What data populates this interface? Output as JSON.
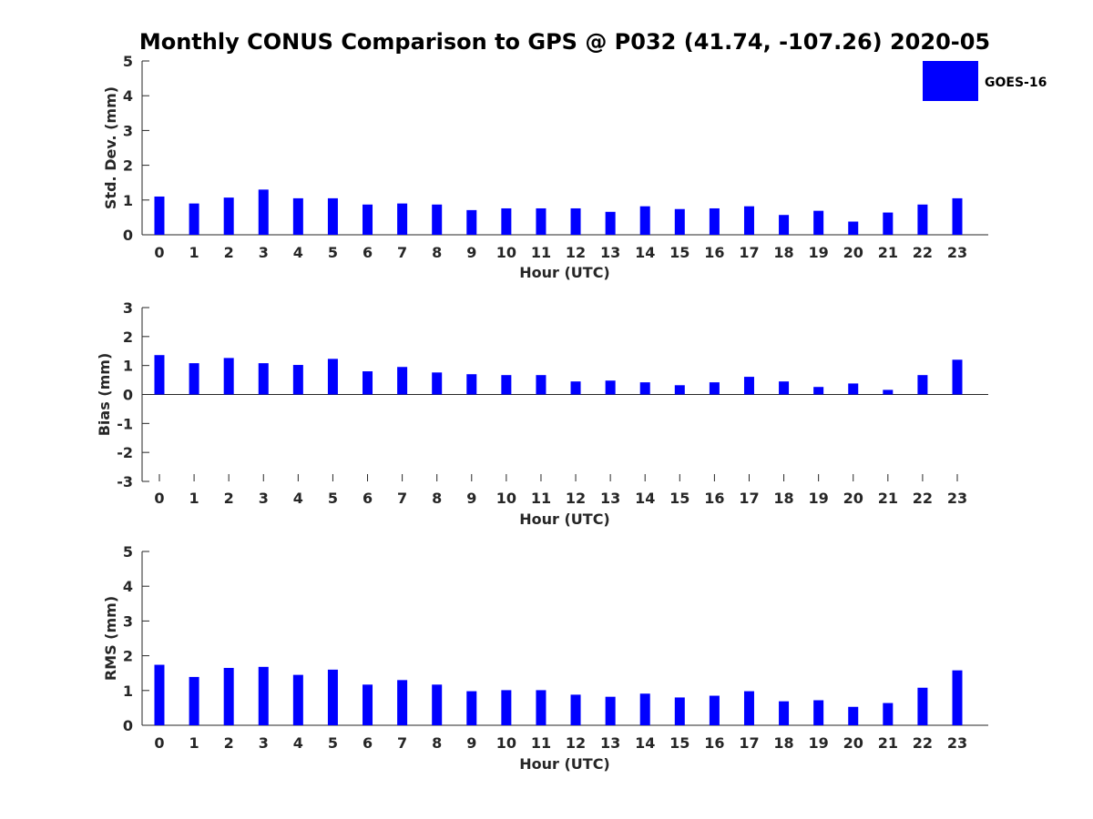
{
  "title": "Monthly CONUS Comparison to GPS @ P032 (41.74, -107.26) 2020-05",
  "legend": {
    "label": "GOES-16",
    "color": "#0000ff"
  },
  "chart_data": [
    {
      "type": "bar",
      "title": "",
      "xlabel": "Hour (UTC)",
      "ylabel": "Std. Dev. (mm)",
      "ylim": [
        0,
        5
      ],
      "yticks": [
        "0",
        "1",
        "2",
        "3",
        "4",
        "5"
      ],
      "categories": [
        "0",
        "1",
        "2",
        "3",
        "4",
        "5",
        "6",
        "7",
        "8",
        "9",
        "10",
        "11",
        "12",
        "13",
        "14",
        "15",
        "16",
        "17",
        "18",
        "19",
        "20",
        "21",
        "22",
        "23"
      ],
      "series": [
        {
          "name": "GOES-16",
          "values": [
            1.1,
            0.9,
            1.07,
            1.3,
            1.05,
            1.05,
            0.87,
            0.9,
            0.87,
            0.71,
            0.76,
            0.76,
            0.76,
            0.66,
            0.82,
            0.74,
            0.76,
            0.82,
            0.57,
            0.69,
            0.38,
            0.64,
            0.87,
            1.05
          ]
        }
      ]
    },
    {
      "type": "bar",
      "title": "",
      "xlabel": "Hour (UTC)",
      "ylabel": "Bias (mm)",
      "ylim": [
        -3,
        3
      ],
      "yticks": [
        "-3",
        "-2",
        "-1",
        "0",
        "1",
        "2",
        "3"
      ],
      "categories": [
        "0",
        "1",
        "2",
        "3",
        "4",
        "5",
        "6",
        "7",
        "8",
        "9",
        "10",
        "11",
        "12",
        "13",
        "14",
        "15",
        "16",
        "17",
        "18",
        "19",
        "20",
        "21",
        "22",
        "23"
      ],
      "series": [
        {
          "name": "GOES-16",
          "values": [
            1.36,
            1.08,
            1.26,
            1.08,
            1.02,
            1.23,
            0.8,
            0.95,
            0.76,
            0.7,
            0.67,
            0.67,
            0.45,
            0.48,
            0.42,
            0.32,
            0.42,
            0.61,
            0.45,
            0.26,
            0.38,
            0.16,
            0.67,
            1.2
          ]
        }
      ]
    },
    {
      "type": "bar",
      "title": "",
      "xlabel": "Hour (UTC)",
      "ylabel": "RMS (mm)",
      "ylim": [
        0,
        5
      ],
      "yticks": [
        "0",
        "1",
        "2",
        "3",
        "4",
        "5"
      ],
      "categories": [
        "0",
        "1",
        "2",
        "3",
        "4",
        "5",
        "6",
        "7",
        "8",
        "9",
        "10",
        "11",
        "12",
        "13",
        "14",
        "15",
        "16",
        "17",
        "18",
        "19",
        "20",
        "21",
        "22",
        "23"
      ],
      "series": [
        {
          "name": "GOES-16",
          "values": [
            1.74,
            1.39,
            1.65,
            1.68,
            1.45,
            1.6,
            1.17,
            1.3,
            1.17,
            0.98,
            1.01,
            1.01,
            0.88,
            0.82,
            0.91,
            0.8,
            0.85,
            0.98,
            0.69,
            0.72,
            0.53,
            0.64,
            1.08,
            1.58
          ]
        }
      ]
    }
  ]
}
